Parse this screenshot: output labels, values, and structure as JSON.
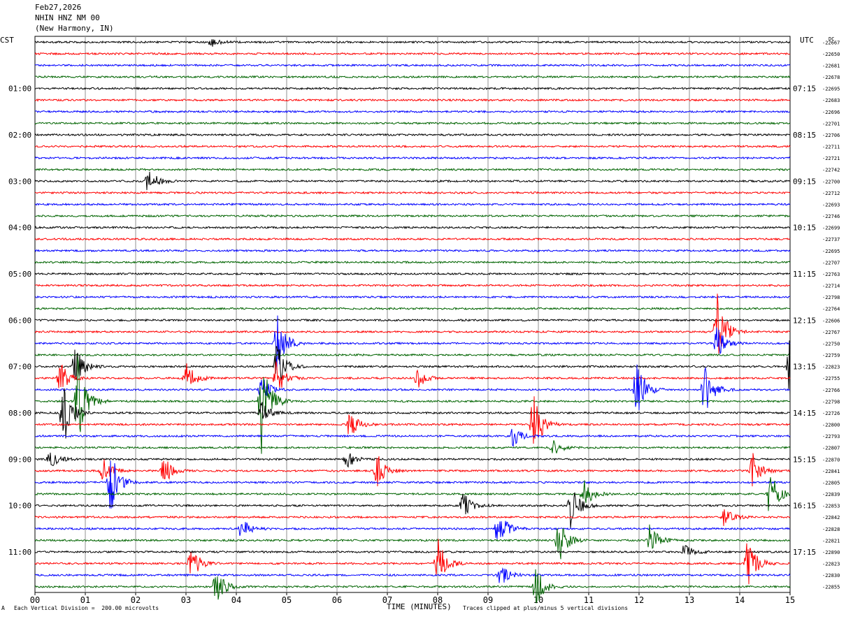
{
  "header": {
    "date": "Feb27,2026",
    "station": "NHIN HNZ NM 00",
    "location": "(New Harmony, IN)"
  },
  "left_timezone": "CST",
  "right_timezone": "UTC",
  "dc_label": "DC",
  "footer": {
    "mark": "A",
    "division": "Each Vertical Division =  200.00 microvolts",
    "clipping": "Traces clipped at plus/minus 5 vertical divisions"
  },
  "trace_colors": [
    "#000000",
    "#ff0000",
    "#0000ff",
    "#006400"
  ],
  "chart_data": {
    "type": "line",
    "title": "",
    "xlabel": "TIME (MINUTES)",
    "ylabel": "",
    "x_ticks": [
      "00",
      "01",
      "02",
      "03",
      "04",
      "05",
      "06",
      "07",
      "08",
      "09",
      "10",
      "11",
      "12",
      "13",
      "14",
      "15"
    ],
    "xlim": [
      0,
      15
    ],
    "grid": true,
    "row_count": 48,
    "minutes_per_row": 15,
    "left_hour_labels": [
      {
        "row": 4,
        "label": "01:00"
      },
      {
        "row": 8,
        "label": "02:00"
      },
      {
        "row": 12,
        "label": "03:00"
      },
      {
        "row": 16,
        "label": "04:00"
      },
      {
        "row": 20,
        "label": "05:00"
      },
      {
        "row": 24,
        "label": "06:00"
      },
      {
        "row": 28,
        "label": "07:00"
      },
      {
        "row": 32,
        "label": "08:00"
      },
      {
        "row": 36,
        "label": "09:00"
      },
      {
        "row": 40,
        "label": "10:00"
      },
      {
        "row": 44,
        "label": "11:00"
      }
    ],
    "right_hour_labels": [
      {
        "row": 4,
        "label": "07:15"
      },
      {
        "row": 8,
        "label": "08:15"
      },
      {
        "row": 12,
        "label": "09:15"
      },
      {
        "row": 16,
        "label": "10:15"
      },
      {
        "row": 20,
        "label": "11:15"
      },
      {
        "row": 24,
        "label": "12:15"
      },
      {
        "row": 28,
        "label": "13:15"
      },
      {
        "row": 32,
        "label": "14:15"
      },
      {
        "row": 36,
        "label": "15:15"
      },
      {
        "row": 40,
        "label": "16:15"
      },
      {
        "row": 44,
        "label": "17:15"
      }
    ],
    "dc_offsets": [
      "-22667",
      "-22650",
      "-22681",
      "-22678",
      "-22695",
      "-22683",
      "-22696",
      "-22701",
      "-22706",
      "-22711",
      "-22721",
      "-22742",
      "-22700",
      "-22712",
      "-22693",
      "-22746",
      "-22699",
      "-22737",
      "-22695",
      "-22707",
      "-22763",
      "-22714",
      "-22798",
      "-22764",
      "-22606",
      "-22767",
      "-22750",
      "-22759",
      "-22823",
      "-22755",
      "-22766",
      "-22798",
      "-22726",
      "-22800",
      "-22793",
      "-22807",
      "-22870",
      "-22841",
      "-22805",
      "-22839",
      "-22853",
      "-22842",
      "-22828",
      "-22821",
      "-22890",
      "-22823",
      "-22830",
      "-22855"
    ],
    "events": [
      {
        "row": 0,
        "minute": 3.5,
        "amp": 0.4
      },
      {
        "row": 12,
        "minute": 2.25,
        "amp": 1.2
      },
      {
        "row": 25,
        "minute": 13.55,
        "amp": 3.5
      },
      {
        "row": 26,
        "minute": 4.8,
        "amp": 3.0
      },
      {
        "row": 26,
        "minute": 13.55,
        "amp": 1.5
      },
      {
        "row": 28,
        "minute": 0.8,
        "amp": 2.0
      },
      {
        "row": 28,
        "minute": 15.0,
        "amp": 4.0
      },
      {
        "row": 28,
        "minute": 4.8,
        "amp": 2.2
      },
      {
        "row": 29,
        "minute": 0.5,
        "amp": 1.5
      },
      {
        "row": 29,
        "minute": 3.0,
        "amp": 1.6
      },
      {
        "row": 29,
        "minute": 4.8,
        "amp": 1.6
      },
      {
        "row": 29,
        "minute": 7.6,
        "amp": 0.9
      },
      {
        "row": 30,
        "minute": 4.5,
        "amp": 1.2
      },
      {
        "row": 30,
        "minute": 11.95,
        "amp": 3.0
      },
      {
        "row": 30,
        "minute": 13.3,
        "amp": 2.4
      },
      {
        "row": 31,
        "minute": 0.85,
        "amp": 4.0
      },
      {
        "row": 31,
        "minute": 4.5,
        "amp": 4.5
      },
      {
        "row": 32,
        "minute": 0.55,
        "amp": 3.5
      },
      {
        "row": 32,
        "minute": 4.5,
        "amp": 1.0
      },
      {
        "row": 33,
        "minute": 6.25,
        "amp": 1.3
      },
      {
        "row": 33,
        "minute": 9.9,
        "amp": 3.0
      },
      {
        "row": 34,
        "minute": 9.5,
        "amp": 0.9
      },
      {
        "row": 35,
        "minute": 10.3,
        "amp": 0.7
      },
      {
        "row": 36,
        "minute": 0.3,
        "amp": 0.8
      },
      {
        "row": 36,
        "minute": 6.2,
        "amp": 0.8
      },
      {
        "row": 37,
        "minute": 1.35,
        "amp": 1.2
      },
      {
        "row": 37,
        "minute": 2.55,
        "amp": 1.4
      },
      {
        "row": 37,
        "minute": 6.8,
        "amp": 1.5
      },
      {
        "row": 37,
        "minute": 14.25,
        "amp": 1.6
      },
      {
        "row": 38,
        "minute": 1.5,
        "amp": 3.0
      },
      {
        "row": 39,
        "minute": 10.9,
        "amp": 1.4
      },
      {
        "row": 39,
        "minute": 14.6,
        "amp": 2.5
      },
      {
        "row": 40,
        "minute": 8.5,
        "amp": 1.2
      },
      {
        "row": 40,
        "minute": 10.65,
        "amp": 2.2
      },
      {
        "row": 41,
        "minute": 13.7,
        "amp": 0.9
      },
      {
        "row": 42,
        "minute": 4.1,
        "amp": 1.0
      },
      {
        "row": 42,
        "minute": 9.2,
        "amp": 1.8
      },
      {
        "row": 43,
        "minute": 10.4,
        "amp": 2.2
      },
      {
        "row": 43,
        "minute": 12.2,
        "amp": 1.6
      },
      {
        "row": 44,
        "minute": 12.9,
        "amp": 0.7
      },
      {
        "row": 45,
        "minute": 3.1,
        "amp": 1.6
      },
      {
        "row": 45,
        "minute": 8.0,
        "amp": 2.3
      },
      {
        "row": 45,
        "minute": 14.15,
        "amp": 2.8
      },
      {
        "row": 46,
        "minute": 9.25,
        "amp": 1.0
      },
      {
        "row": 47,
        "minute": 3.6,
        "amp": 1.8
      },
      {
        "row": 47,
        "minute": 9.95,
        "amp": 1.8
      }
    ]
  }
}
